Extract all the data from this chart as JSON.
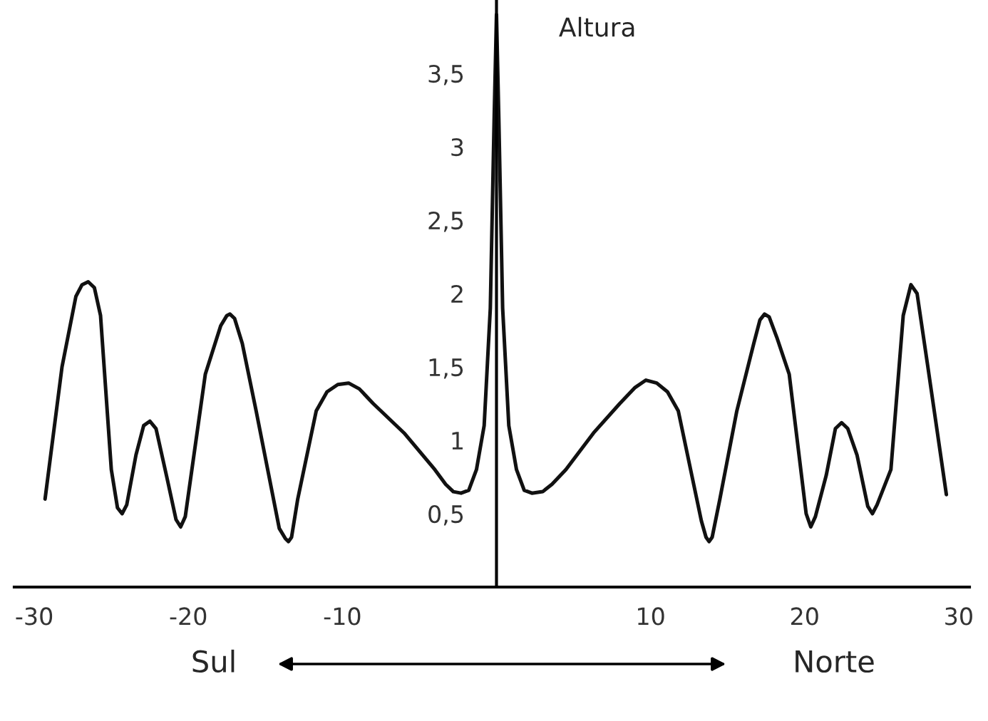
{
  "chart_data": {
    "type": "line",
    "ylabel": "Altura",
    "annotations": [
      "Sul",
      "Norte"
    ],
    "x": [
      -29.3,
      -28.2,
      -27.3,
      -26.9,
      -26.5,
      -26.1,
      -25.7,
      -25.0,
      -24.6,
      -24.3,
      -24.0,
      -23.4,
      -22.9,
      -22.5,
      -22.1,
      -21.4,
      -20.8,
      -20.5,
      -20.2,
      -18.9,
      -17.9,
      -17.5,
      -17.3,
      -17.0,
      -16.5,
      -15.6,
      -14.1,
      -13.7,
      -13.5,
      -13.3,
      -12.9,
      -11.7,
      -11.0,
      -10.3,
      -9.6,
      -8.9,
      -8.0,
      -6.0,
      -4.0,
      -3.3,
      -2.8,
      -2.3,
      -1.8,
      -1.3,
      -0.8,
      -0.4,
      -0.15,
      0,
      0.15,
      0.4,
      0.8,
      1.3,
      1.8,
      2.3,
      3.0,
      3.6,
      4.5,
      6.3,
      8.0,
      9.0,
      9.7,
      10.4,
      11.1,
      11.8,
      13.3,
      13.6,
      13.8,
      14.0,
      14.5,
      15.6,
      16.7,
      17.1,
      17.4,
      17.7,
      18.2,
      19.0,
      20.1,
      20.4,
      20.7,
      21.4,
      22.0,
      22.4,
      22.8,
      23.4,
      24.1,
      24.4,
      24.7,
      25.6,
      26.4,
      26.9,
      27.3,
      28.0,
      29.2
    ],
    "series": [
      {
        "color": "#111111",
        "values": [
          0.6,
          1.5,
          1.98,
          2.06,
          2.08,
          2.04,
          1.85,
          0.8,
          0.54,
          0.5,
          0.56,
          0.9,
          1.1,
          1.13,
          1.08,
          0.75,
          0.46,
          0.41,
          0.48,
          1.45,
          1.78,
          1.85,
          1.86,
          1.83,
          1.66,
          1.2,
          0.4,
          0.33,
          0.31,
          0.34,
          0.6,
          1.2,
          1.33,
          1.38,
          1.39,
          1.35,
          1.25,
          1.05,
          0.8,
          0.7,
          0.65,
          0.64,
          0.66,
          0.8,
          1.1,
          1.9,
          3.2,
          3.9,
          3.2,
          1.9,
          1.1,
          0.8,
          0.66,
          0.64,
          0.65,
          0.7,
          0.8,
          1.05,
          1.25,
          1.36,
          1.41,
          1.39,
          1.33,
          1.2,
          0.45,
          0.34,
          0.31,
          0.34,
          0.6,
          1.2,
          1.66,
          1.82,
          1.86,
          1.84,
          1.7,
          1.45,
          0.5,
          0.41,
          0.48,
          0.76,
          1.08,
          1.12,
          1.08,
          0.9,
          0.55,
          0.5,
          0.56,
          0.8,
          1.85,
          2.06,
          2.0,
          1.5,
          0.63
        ]
      }
    ],
    "xlim": [
      -31.3,
      30.7
    ],
    "ylim": [
      0,
      4.0
    ],
    "xticks": [
      -30,
      -20,
      -10,
      10,
      20,
      30
    ],
    "yticks": [
      {
        "value": 0.5,
        "label": "0,5"
      },
      {
        "value": 1,
        "label": "1"
      },
      {
        "value": 1.5,
        "label": "1,5"
      },
      {
        "value": 2,
        "label": "2"
      },
      {
        "value": 2.5,
        "label": "2,5"
      },
      {
        "value": 3,
        "label": "3"
      },
      {
        "value": 3.5,
        "label": "3,5"
      }
    ],
    "grid": false,
    "legend": false,
    "marker": "none",
    "line_style": "solid"
  }
}
